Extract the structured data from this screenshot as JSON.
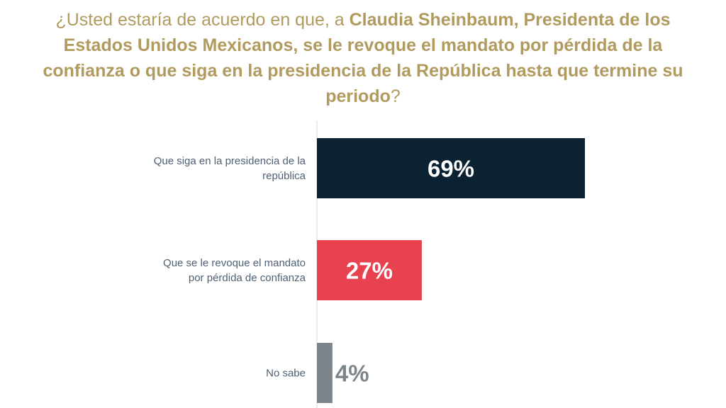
{
  "title": {
    "part1": "¿Usted estaría de acuerdo en que, a ",
    "part2": "Claudia Sheinbaum, Presidenta de los Estados Unidos Mexicanos, se le revoque el mandato por pérdida de la confianza o que siga en la presidencia de la República hasta que termine su periodo",
    "part3": "?"
  },
  "colors": {
    "title": "#b09a5e",
    "category_text": "#4f5f73",
    "axis": "#d9d9d9"
  },
  "chart_data": {
    "type": "bar",
    "orientation": "horizontal",
    "categories": [
      [
        "Que siga en la presidencia de la",
        "república"
      ],
      [
        "Que se le revoque el mandato",
        "por pérdida de confianza"
      ],
      [
        "No sabe"
      ]
    ],
    "values": [
      69,
      27,
      4
    ],
    "value_labels": [
      "69%",
      "27%",
      "4%"
    ],
    "bar_colors": [
      "#0b2233",
      "#e8414f",
      "#7d858c"
    ],
    "label_colors": [
      "#ffffff",
      "#ffffff",
      "#7d858c"
    ],
    "xlim": [
      0,
      69
    ],
    "unit": "%",
    "grid": false,
    "legend": "none"
  }
}
